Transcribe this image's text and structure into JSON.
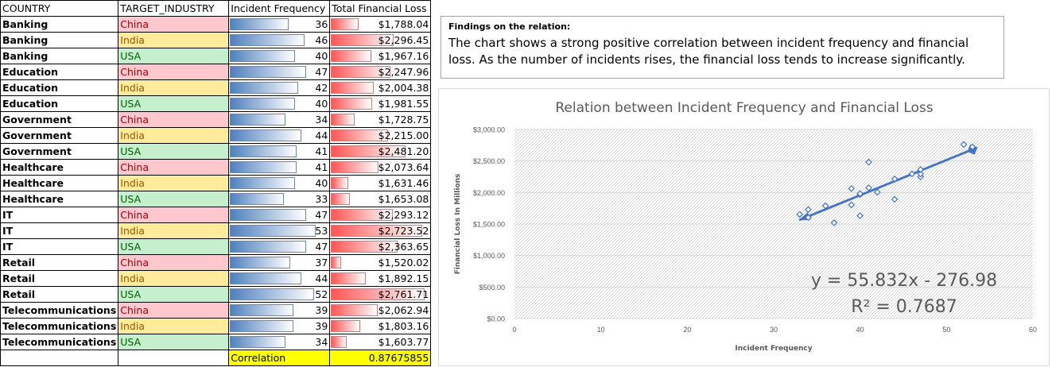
{
  "table": {
    "headers": [
      "COUNTRY",
      "TARGET_INDUSTRY",
      "Incident Frequency",
      "Total Financial Loss"
    ],
    "rows": [
      {
        "country": "Banking",
        "industry": "China",
        "freq": 36,
        "loss": "$1,788.04"
      },
      {
        "country": "Banking",
        "industry": "India",
        "freq": 46,
        "loss": "$2,296.45"
      },
      {
        "country": "Banking",
        "industry": "USA",
        "freq": 40,
        "loss": "$1,967.16"
      },
      {
        "country": "Education",
        "industry": "China",
        "freq": 47,
        "loss": "$2,247.96"
      },
      {
        "country": "Education",
        "industry": "India",
        "freq": 42,
        "loss": "$2,004.38"
      },
      {
        "country": "Education",
        "industry": "USA",
        "freq": 40,
        "loss": "$1,981.55"
      },
      {
        "country": "Government",
        "industry": "China",
        "freq": 34,
        "loss": "$1,728.75"
      },
      {
        "country": "Government",
        "industry": "India",
        "freq": 44,
        "loss": "$2,215.00"
      },
      {
        "country": "Government",
        "industry": "USA",
        "freq": 41,
        "loss": "$2,481.20"
      },
      {
        "country": "Healthcare",
        "industry": "China",
        "freq": 41,
        "loss": "$2,073.64"
      },
      {
        "country": "Healthcare",
        "industry": "India",
        "freq": 40,
        "loss": "$1,631.46"
      },
      {
        "country": "Healthcare",
        "industry": "USA",
        "freq": 33,
        "loss": "$1,653.08"
      },
      {
        "country": "IT",
        "industry": "China",
        "freq": 47,
        "loss": "$2,293.12"
      },
      {
        "country": "IT",
        "industry": "India",
        "freq": 53,
        "loss": "$2,723.52"
      },
      {
        "country": "IT",
        "industry": "USA",
        "freq": 47,
        "loss": "$2,363.65"
      },
      {
        "country": "Retail",
        "industry": "China",
        "freq": 37,
        "loss": "$1,520.02"
      },
      {
        "country": "Retail",
        "industry": "India",
        "freq": 44,
        "loss": "$1,892.15"
      },
      {
        "country": "Retail",
        "industry": "USA",
        "freq": 52,
        "loss": "$2,761.71"
      },
      {
        "country": "Telecommunications",
        "industry": "China",
        "freq": 39,
        "loss": "$2,062.94"
      },
      {
        "country": "Telecommunications",
        "industry": "India",
        "freq": 39,
        "loss": "$1,803.16"
      },
      {
        "country": "Telecommunications",
        "industry": "USA",
        "freq": 34,
        "loss": "$1,603.77"
      }
    ],
    "correlation_label": "Correlation",
    "correlation_value": "0.87675855",
    "industry_colors": {
      "China": {
        "fill": "#ffc7ce",
        "text": "#9c0006"
      },
      "India": {
        "fill": "#ffeb9c",
        "text": "#9c5700"
      },
      "USA": {
        "fill": "#c6efce",
        "text": "#006100"
      }
    },
    "bar_colors": {
      "frequency": "#4f81bd",
      "loss": "#ff5555"
    },
    "highlight_color": "#ffff00"
  },
  "findings": {
    "title": "Findings on the relation:",
    "body": "The chart shows a strong positive correlation between incident frequency and financial loss. As the number of incidents rises, the financial loss tends to increase significantly."
  },
  "chart_data": {
    "type": "scatter",
    "title": "Relation between Incident Frequency and Financial Loss",
    "xlabel": "Incident Frequency",
    "ylabel": "Financial Loss In Millions",
    "xlim": [
      0,
      60
    ],
    "ylim": [
      0,
      3000
    ],
    "xticks": [
      "0",
      "10",
      "20",
      "30",
      "40",
      "50",
      "60"
    ],
    "yticks": [
      "$0.00",
      "$500.00",
      "$1,000.00",
      "$1,500.00",
      "$2,000.00",
      "$2,500.00",
      "$3,000.00"
    ],
    "points": [
      [
        36,
        1788.04
      ],
      [
        46,
        2296.45
      ],
      [
        40,
        1967.16
      ],
      [
        47,
        2247.96
      ],
      [
        42,
        2004.38
      ],
      [
        40,
        1981.55
      ],
      [
        34,
        1728.75
      ],
      [
        44,
        2215.0
      ],
      [
        41,
        2481.2
      ],
      [
        41,
        2073.64
      ],
      [
        40,
        1631.46
      ],
      [
        33,
        1653.08
      ],
      [
        47,
        2293.12
      ],
      [
        53,
        2723.52
      ],
      [
        47,
        2363.65
      ],
      [
        37,
        1520.02
      ],
      [
        44,
        1892.15
      ],
      [
        52,
        2761.71
      ],
      [
        39,
        2062.94
      ],
      [
        39,
        1803.16
      ],
      [
        34,
        1603.77
      ]
    ],
    "trendline": {
      "slope": 55.832,
      "intercept": -276.98,
      "x_range": [
        33,
        53
      ]
    },
    "equation_label": "y = 55.832x - 276.98",
    "r2_label": "R² = 0.7687",
    "grid": "horizontal",
    "colors": {
      "marker": "#4472c4",
      "trend": "#4472c4",
      "title": "#595959",
      "text": "#595959",
      "grid_hatch": "#bfbfbf"
    }
  }
}
